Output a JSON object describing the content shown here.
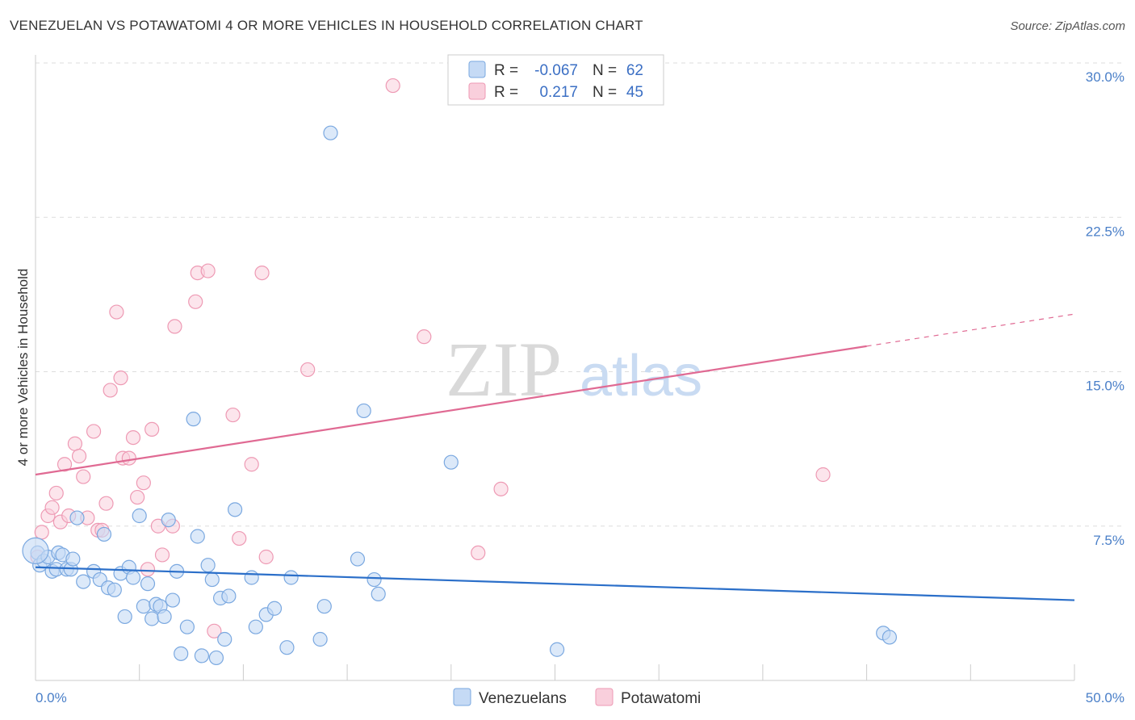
{
  "header": {
    "title": "VENEZUELAN VS POTAWATOMI 4 OR MORE VEHICLES IN HOUSEHOLD CORRELATION CHART",
    "source": "Source: ZipAtlas.com"
  },
  "legend": {
    "rows": [
      {
        "r_label": "R =",
        "r_value": "-0.067",
        "n_label": "N =",
        "n_value": "62"
      },
      {
        "r_label": "R =",
        "r_value": "0.217",
        "n_label": "N =",
        "n_value": "45"
      }
    ]
  },
  "watermark": {
    "zip": "ZIP",
    "atlas": "atlas"
  },
  "colors": {
    "blue_fill": "#c5daf5",
    "blue_stroke": "#7aa8e0",
    "blue_line": "#2b6fc9",
    "pink_fill": "#f9cfdc",
    "pink_stroke": "#ee9ab4",
    "pink_line": "#e06a93",
    "grid": "#dddddd",
    "tick_text": "#4a7fc8"
  },
  "chart_data": {
    "type": "scatter",
    "title": "VENEZUELAN VS POTAWATOMI 4 OR MORE VEHICLES IN HOUSEHOLD CORRELATION CHART",
    "xlabel": "",
    "ylabel": "4 or more Vehicles in Household",
    "xlim": [
      0,
      50
    ],
    "ylim": [
      0,
      30
    ],
    "x_tick_labels": [
      "0.0%",
      "50.0%"
    ],
    "y_ticks": [
      7.5,
      15.0,
      22.5,
      30.0
    ],
    "y_tick_labels": [
      "7.5%",
      "15.0%",
      "22.5%",
      "30.0%"
    ],
    "grid": true,
    "legend_position": "top-center",
    "series": [
      {
        "name": "Venezuelans",
        "color": "#7aa8e0",
        "r": -0.067,
        "n": 62,
        "trend": {
          "x": [
            0,
            50
          ],
          "y": [
            5.5,
            3.9
          ],
          "solid_until": 50
        },
        "points": [
          [
            0.1,
            6.2
          ],
          [
            0.2,
            5.6
          ],
          [
            0.4,
            5.8
          ],
          [
            0.6,
            6.0
          ],
          [
            0.8,
            5.3
          ],
          [
            1.0,
            5.4
          ],
          [
            1.1,
            6.2
          ],
          [
            1.3,
            6.1
          ],
          [
            1.5,
            5.4
          ],
          [
            1.7,
            5.4
          ],
          [
            1.8,
            5.9
          ],
          [
            2.0,
            7.9
          ],
          [
            2.3,
            4.8
          ],
          [
            2.8,
            5.3
          ],
          [
            3.1,
            4.9
          ],
          [
            3.3,
            7.1
          ],
          [
            3.5,
            4.5
          ],
          [
            3.8,
            4.4
          ],
          [
            4.1,
            5.2
          ],
          [
            4.3,
            3.1
          ],
          [
            4.5,
            5.5
          ],
          [
            4.7,
            5.0
          ],
          [
            5.0,
            8.0
          ],
          [
            5.2,
            3.6
          ],
          [
            5.4,
            4.7
          ],
          [
            5.6,
            3.0
          ],
          [
            5.8,
            3.7
          ],
          [
            6.0,
            3.6
          ],
          [
            6.2,
            3.1
          ],
          [
            6.4,
            7.8
          ],
          [
            6.6,
            3.9
          ],
          [
            6.8,
            5.3
          ],
          [
            7.0,
            1.3
          ],
          [
            7.3,
            2.6
          ],
          [
            7.6,
            12.7
          ],
          [
            7.8,
            7.0
          ],
          [
            8.0,
            1.2
          ],
          [
            8.3,
            5.6
          ],
          [
            8.5,
            4.9
          ],
          [
            8.7,
            1.1
          ],
          [
            8.9,
            4.0
          ],
          [
            9.1,
            2.0
          ],
          [
            9.3,
            4.1
          ],
          [
            9.6,
            8.3
          ],
          [
            10.4,
            5.0
          ],
          [
            10.6,
            2.6
          ],
          [
            11.1,
            3.2
          ],
          [
            11.5,
            3.5
          ],
          [
            12.1,
            1.6
          ],
          [
            12.3,
            5.0
          ],
          [
            13.7,
            2.0
          ],
          [
            13.9,
            3.6
          ],
          [
            14.2,
            26.6
          ],
          [
            15.5,
            5.9
          ],
          [
            15.8,
            13.1
          ],
          [
            16.3,
            4.9
          ],
          [
            16.5,
            4.2
          ],
          [
            20.0,
            10.6
          ],
          [
            25.1,
            1.5
          ],
          [
            40.8,
            2.3
          ],
          [
            41.1,
            2.1
          ],
          [
            0.0,
            6.3
          ]
        ]
      },
      {
        "name": "Potawatomi",
        "color": "#ee9ab4",
        "r": 0.217,
        "n": 45,
        "trend": {
          "x": [
            0,
            50
          ],
          "y": [
            10.0,
            17.8
          ],
          "solid_until": 40
        },
        "points": [
          [
            0.1,
            6.0
          ],
          [
            0.3,
            7.2
          ],
          [
            0.6,
            8.0
          ],
          [
            0.8,
            8.4
          ],
          [
            1.0,
            9.1
          ],
          [
            1.2,
            7.7
          ],
          [
            1.4,
            10.5
          ],
          [
            1.6,
            8.0
          ],
          [
            1.9,
            11.5
          ],
          [
            2.1,
            10.9
          ],
          [
            2.3,
            9.9
          ],
          [
            2.5,
            7.9
          ],
          [
            2.8,
            12.1
          ],
          [
            3.0,
            7.3
          ],
          [
            3.2,
            7.3
          ],
          [
            3.4,
            8.6
          ],
          [
            3.6,
            14.1
          ],
          [
            3.9,
            17.9
          ],
          [
            4.1,
            14.7
          ],
          [
            4.2,
            10.8
          ],
          [
            4.5,
            10.8
          ],
          [
            4.7,
            11.8
          ],
          [
            4.9,
            8.9
          ],
          [
            5.2,
            9.6
          ],
          [
            5.4,
            5.4
          ],
          [
            5.6,
            12.2
          ],
          [
            5.9,
            7.5
          ],
          [
            6.1,
            6.1
          ],
          [
            6.6,
            7.5
          ],
          [
            6.7,
            17.2
          ],
          [
            7.7,
            18.4
          ],
          [
            7.8,
            19.8
          ],
          [
            8.3,
            19.9
          ],
          [
            8.6,
            2.4
          ],
          [
            9.5,
            12.9
          ],
          [
            9.8,
            6.9
          ],
          [
            10.4,
            10.5
          ],
          [
            10.9,
            19.8
          ],
          [
            11.1,
            6.0
          ],
          [
            13.1,
            15.1
          ],
          [
            17.2,
            28.9
          ],
          [
            18.7,
            16.7
          ],
          [
            21.3,
            6.2
          ],
          [
            22.4,
            9.3
          ],
          [
            37.9,
            10.0
          ]
        ]
      }
    ]
  },
  "bottom_legend": [
    {
      "label": "Venezuelans"
    },
    {
      "label": "Potawatomi"
    }
  ]
}
